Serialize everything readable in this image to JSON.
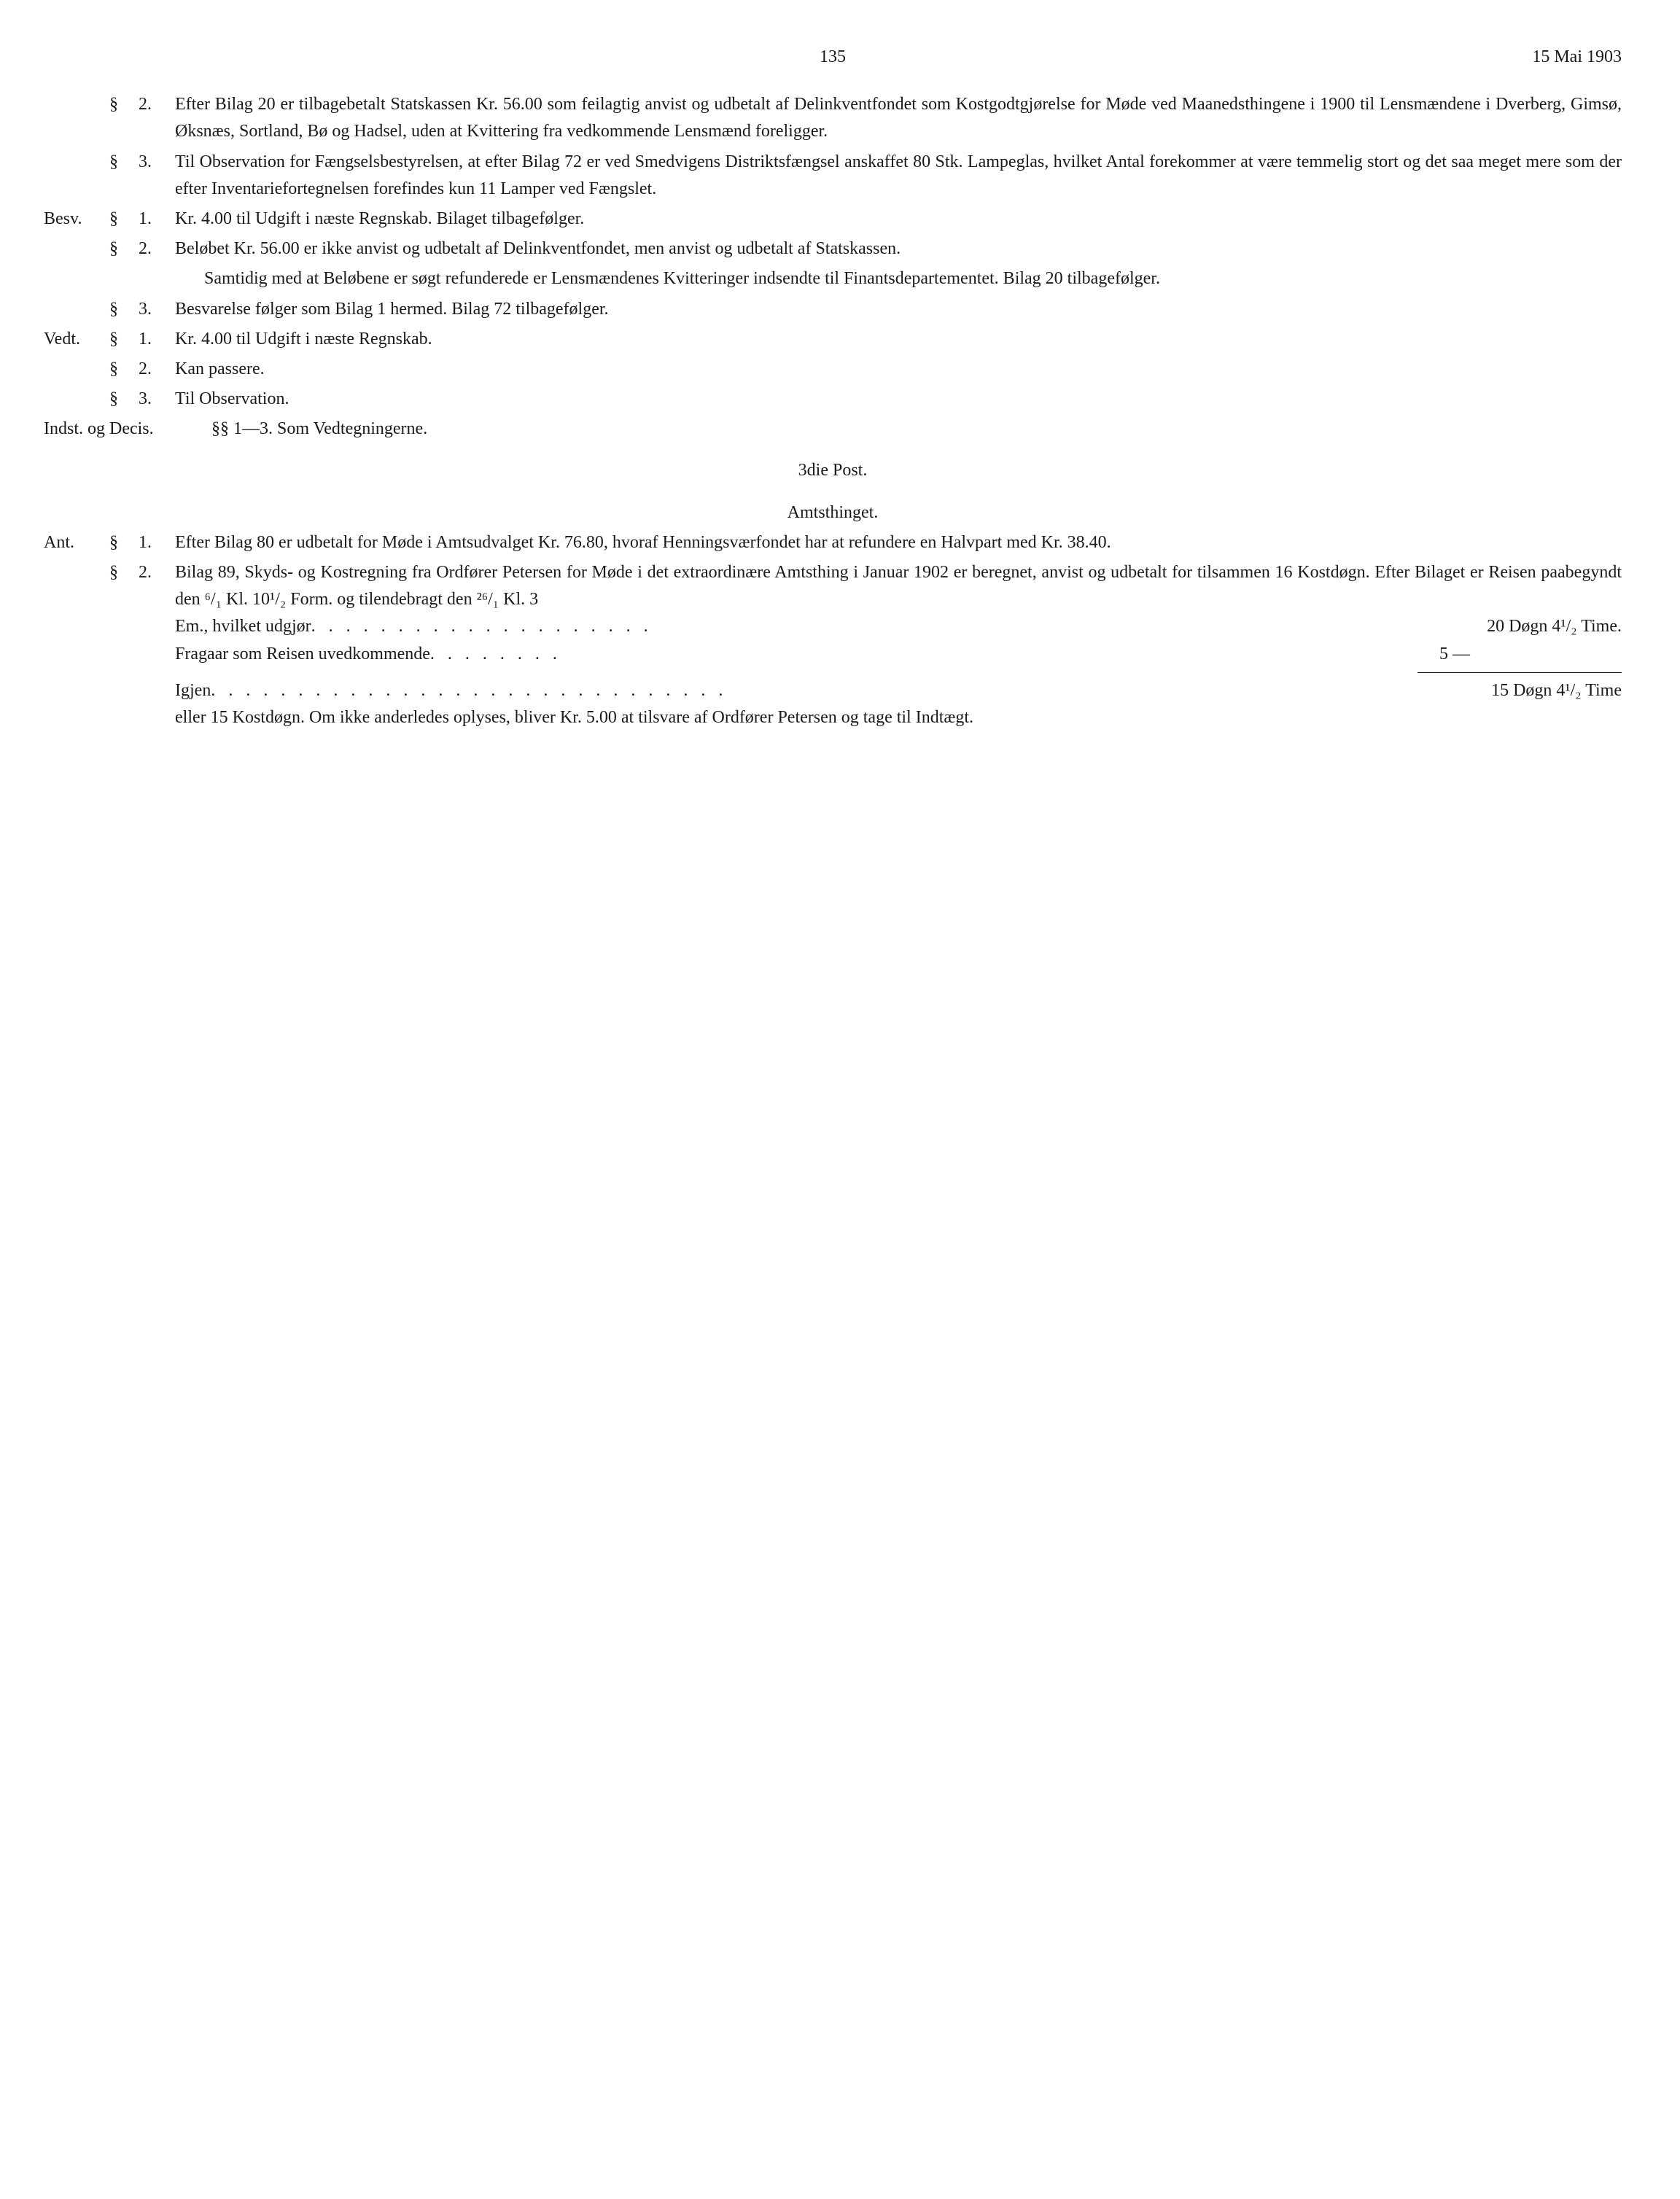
{
  "page_number": "135",
  "date": "15 Mai 1903",
  "entries": [
    {
      "margin": "",
      "sym": "§",
      "num": "2.",
      "text": "Efter Bilag 20 er tilbagebetalt Statskassen Kr. 56.00 som feilagtig anvist og udbetalt af Delinkventfondet som Kostgodtgjørelse for Møde ved Maanedsthingene i 1900 til Lensmændene i Dverberg, Gimsø, Øksnæs, Sortland, Bø og Hadsel, uden at Kvittering fra vedkommende Lensmænd foreligger."
    },
    {
      "margin": "",
      "sym": "§",
      "num": "3.",
      "text": "Til Observation for Fængselsbestyrelsen, at efter Bilag 72 er ved Smedvigens Distriktsfængsel anskaffet 80 Stk. Lampeglas, hvilket Antal forekommer at være temmelig stort og det saa meget mere som der efter Inventariefortegnelsen forefindes kun 11 Lamper ved Fængslet."
    },
    {
      "margin": "Besv.",
      "sym": "§",
      "num": "1.",
      "text": "Kr. 4.00 til Udgift i næste Regnskab.  Bilaget tilbagefølger."
    },
    {
      "margin": "",
      "sym": "§",
      "num": "2.",
      "text": "Beløbet Kr. 56.00 er ikke anvist og udbetalt af Delinkventfondet, men anvist og udbetalt af Statskassen."
    },
    {
      "margin": "",
      "sym": "",
      "num": "",
      "indent": true,
      "text": "Samtidig med at Beløbene er søgt refunderede er Lensmændenes Kvitteringer indsendte til Finantsdepartementet.  Bilag 20 tilbagefølger."
    },
    {
      "margin": "",
      "sym": "§",
      "num": "3.",
      "text": "Besvarelse følger som Bilag 1 hermed.  Bilag 72 tilbagefølger."
    },
    {
      "margin": "Vedt.",
      "sym": "§",
      "num": "1.",
      "text": "Kr. 4.00 til Udgift i næste Regnskab."
    },
    {
      "margin": "",
      "sym": "§",
      "num": "2.",
      "text": "Kan passere."
    },
    {
      "margin": "",
      "sym": "§",
      "num": "3.",
      "text": "Til Observation."
    }
  ],
  "indst_label": "Indst. og Decis.",
  "indst_text": "§§ 1—3.  Som Vedtegningerne.",
  "section_heads": [
    "3die Post.",
    "Amtsthinget."
  ],
  "entries2": [
    {
      "margin": "Ant.",
      "sym": "§",
      "num": "1.",
      "text": "Efter Bilag 80 er udbetalt for Møde i Amtsudvalget Kr. 76.80, hvoraf Henningsværfondet har at refundere en Halvpart med Kr. 38.40."
    }
  ],
  "entry2_2": {
    "margin": "",
    "sym": "§",
    "num": "2.",
    "text_pre": "Bilag 89, Skyds- og Kostregning fra Ordfører Petersen for Møde i det extraordinære Amtsthing i Januar 1902 er beregnet, anvist og udbetalt for tilsammen 16 Kostdøgn.  Efter Bilaget er Reisen paabegyndt den ⁶/₁ Kl. 10¹/₂ Form. og tilendebragt den ²⁶/₁ Kl. 3",
    "calc1_label": "Em., hvilket udgjør",
    "calc1_value": "20 Døgn 4¹/₂ Time.",
    "calc2_label": "Fragaar som Reisen uvedkommende",
    "calc2_value": "5    —",
    "calc3_label": "Igjen",
    "calc3_value": "15 Døgn 4¹/₂ Time",
    "text_post": "eller 15 Kostdøgn.  Om ikke anderledes oplyses, bliver Kr. 5.00 at tilsvare af Ordfører Petersen og tage til Indtægt."
  }
}
